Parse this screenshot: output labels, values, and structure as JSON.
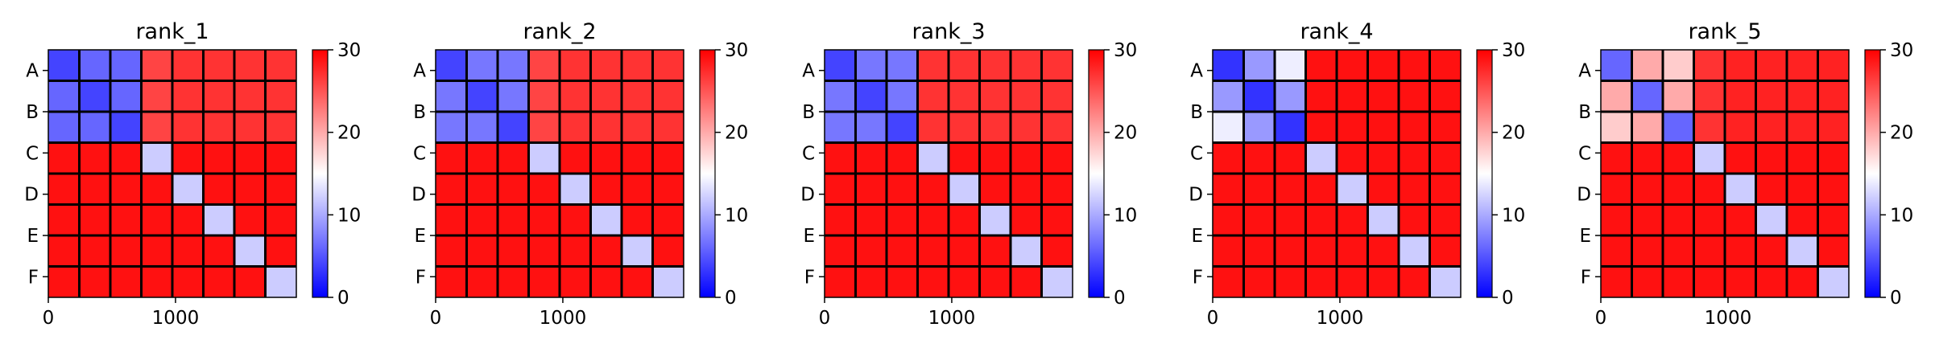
{
  "chart_data": [
    {
      "type": "heatmap",
      "title": "rank_1",
      "xlabel": "",
      "ylabel": "",
      "x_ticks": [
        0,
        1000
      ],
      "xlim": [
        0,
        1950
      ],
      "y_categories": [
        "A",
        "B",
        "C",
        "D",
        "E",
        "F"
      ],
      "block_divisions": 8,
      "colorbar": {
        "min": 0,
        "max": 30,
        "ticks": [
          0,
          10,
          20,
          30
        ],
        "colors": [
          "#0000ff",
          "#ffffff",
          "#ff0000"
        ]
      },
      "block_values": [
        [
          4,
          6,
          6,
          26,
          27,
          27,
          27,
          27
        ],
        [
          6,
          4,
          6,
          26,
          27,
          27,
          27,
          27
        ],
        [
          6,
          6,
          4,
          26,
          27,
          27,
          27,
          27
        ],
        [
          29,
          29,
          29,
          12,
          29,
          29,
          29,
          29
        ],
        [
          29,
          29,
          29,
          29,
          12,
          29,
          29,
          29
        ],
        [
          29,
          29,
          29,
          29,
          29,
          12,
          29,
          29
        ],
        [
          29,
          29,
          29,
          29,
          29,
          29,
          12,
          29
        ],
        [
          29,
          29,
          29,
          29,
          29,
          29,
          29,
          12
        ]
      ]
    },
    {
      "type": "heatmap",
      "title": "rank_2",
      "xlabel": "",
      "ylabel": "",
      "x_ticks": [
        0,
        1000
      ],
      "xlim": [
        0,
        1950
      ],
      "y_categories": [
        "A",
        "B",
        "C",
        "D",
        "E",
        "F"
      ],
      "block_divisions": 8,
      "colorbar": {
        "min": 0,
        "max": 30,
        "ticks": [
          0,
          10,
          20,
          30
        ],
        "colors": [
          "#0000ff",
          "#ffffff",
          "#ff0000"
        ]
      },
      "block_values": [
        [
          4,
          7,
          7,
          26,
          27,
          27,
          27,
          27
        ],
        [
          7,
          4,
          7,
          26,
          27,
          27,
          27,
          27
        ],
        [
          7,
          7,
          4,
          26,
          27,
          27,
          27,
          27
        ],
        [
          29,
          29,
          29,
          12,
          29,
          29,
          29,
          29
        ],
        [
          29,
          29,
          29,
          29,
          12,
          29,
          29,
          29
        ],
        [
          29,
          29,
          29,
          29,
          29,
          12,
          29,
          29
        ],
        [
          29,
          29,
          29,
          29,
          29,
          29,
          12,
          29
        ],
        [
          29,
          29,
          29,
          29,
          29,
          29,
          29,
          12
        ]
      ]
    },
    {
      "type": "heatmap",
      "title": "rank_3",
      "xlabel": "",
      "ylabel": "",
      "x_ticks": [
        0,
        1000
      ],
      "xlim": [
        0,
        1950
      ],
      "y_categories": [
        "A",
        "B",
        "C",
        "D",
        "E",
        "F"
      ],
      "block_divisions": 8,
      "colorbar": {
        "min": 0,
        "max": 30,
        "ticks": [
          0,
          10,
          20,
          30
        ],
        "colors": [
          "#0000ff",
          "#ffffff",
          "#ff0000"
        ]
      },
      "block_values": [
        [
          4,
          7,
          7,
          27,
          27,
          27,
          27,
          27
        ],
        [
          7,
          4,
          7,
          27,
          27,
          27,
          27,
          27
        ],
        [
          7,
          7,
          4,
          27,
          27,
          27,
          27,
          27
        ],
        [
          29,
          29,
          29,
          12,
          29,
          29,
          29,
          29
        ],
        [
          29,
          29,
          29,
          29,
          12,
          29,
          29,
          29
        ],
        [
          29,
          29,
          29,
          29,
          29,
          12,
          29,
          29
        ],
        [
          29,
          29,
          29,
          29,
          29,
          29,
          12,
          29
        ],
        [
          29,
          29,
          29,
          29,
          29,
          29,
          29,
          12
        ]
      ]
    },
    {
      "type": "heatmap",
      "title": "rank_4",
      "xlabel": "",
      "ylabel": "",
      "x_ticks": [
        0,
        1000
      ],
      "xlim": [
        0,
        1950
      ],
      "y_categories": [
        "A",
        "B",
        "C",
        "D",
        "E",
        "F"
      ],
      "block_divisions": 8,
      "colorbar": {
        "min": 0,
        "max": 30,
        "ticks": [
          0,
          10,
          20,
          30
        ],
        "colors": [
          "#0000ff",
          "#ffffff",
          "#ff0000"
        ]
      },
      "block_values": [
        [
          3,
          9,
          14,
          29,
          29,
          29,
          29,
          29
        ],
        [
          9,
          3,
          9,
          29,
          29,
          29,
          29,
          29
        ],
        [
          14,
          9,
          3,
          29,
          29,
          29,
          29,
          29
        ],
        [
          29,
          29,
          29,
          12,
          29,
          29,
          29,
          29
        ],
        [
          29,
          29,
          29,
          29,
          12,
          29,
          29,
          29
        ],
        [
          29,
          29,
          29,
          29,
          29,
          12,
          29,
          29
        ],
        [
          29,
          29,
          29,
          29,
          29,
          29,
          12,
          29
        ],
        [
          29,
          29,
          29,
          29,
          29,
          29,
          29,
          12
        ]
      ]
    },
    {
      "type": "heatmap",
      "title": "rank_5",
      "xlabel": "",
      "ylabel": "",
      "x_ticks": [
        0,
        1000
      ],
      "xlim": [
        0,
        1950
      ],
      "y_categories": [
        "A",
        "B",
        "C",
        "D",
        "E",
        "F"
      ],
      "block_divisions": 8,
      "colorbar": {
        "min": 0,
        "max": 30,
        "ticks": [
          0,
          10,
          20,
          30
        ],
        "colors": [
          "#0000ff",
          "#ffffff",
          "#ff0000"
        ]
      },
      "block_values": [
        [
          6,
          20,
          18,
          27,
          28,
          28,
          28,
          28
        ],
        [
          20,
          6,
          20,
          27,
          28,
          28,
          28,
          28
        ],
        [
          18,
          20,
          6,
          27,
          28,
          28,
          28,
          28
        ],
        [
          29,
          29,
          29,
          12,
          29,
          29,
          29,
          29
        ],
        [
          29,
          29,
          29,
          29,
          12,
          29,
          29,
          29
        ],
        [
          29,
          29,
          29,
          29,
          29,
          12,
          29,
          29
        ],
        [
          29,
          29,
          29,
          29,
          29,
          29,
          12,
          29
        ],
        [
          29,
          29,
          29,
          29,
          29,
          29,
          29,
          12
        ]
      ]
    }
  ]
}
